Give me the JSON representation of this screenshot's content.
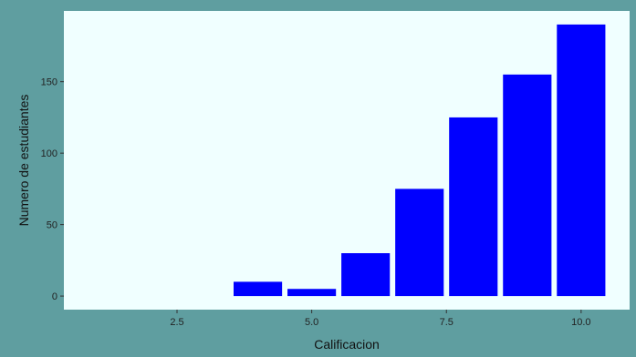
{
  "colors": {
    "background": "#5f9ea0",
    "panel": "#f0ffff",
    "bar": "#0000ff",
    "tick": "#333333"
  },
  "chart_data": {
    "type": "bar",
    "xlabel": "Calificacion",
    "ylabel": "Numero de estudiantes",
    "x": [
      4,
      5,
      6,
      7,
      8,
      9,
      10
    ],
    "values": [
      10,
      5,
      30,
      75,
      125,
      155,
      190
    ],
    "bar_width": 0.9,
    "xlim": [
      0.4,
      10.9
    ],
    "ylim": [
      -9.5,
      199.5
    ],
    "xticks": [
      2.5,
      5.0,
      7.5,
      10.0
    ],
    "xtick_labels": [
      "2.5",
      "5.0",
      "7.5",
      "10.0"
    ],
    "yticks": [
      0,
      50,
      100,
      150
    ],
    "ytick_labels": [
      "0",
      "50",
      "100",
      "150"
    ],
    "grid": false,
    "legend": "none"
  }
}
